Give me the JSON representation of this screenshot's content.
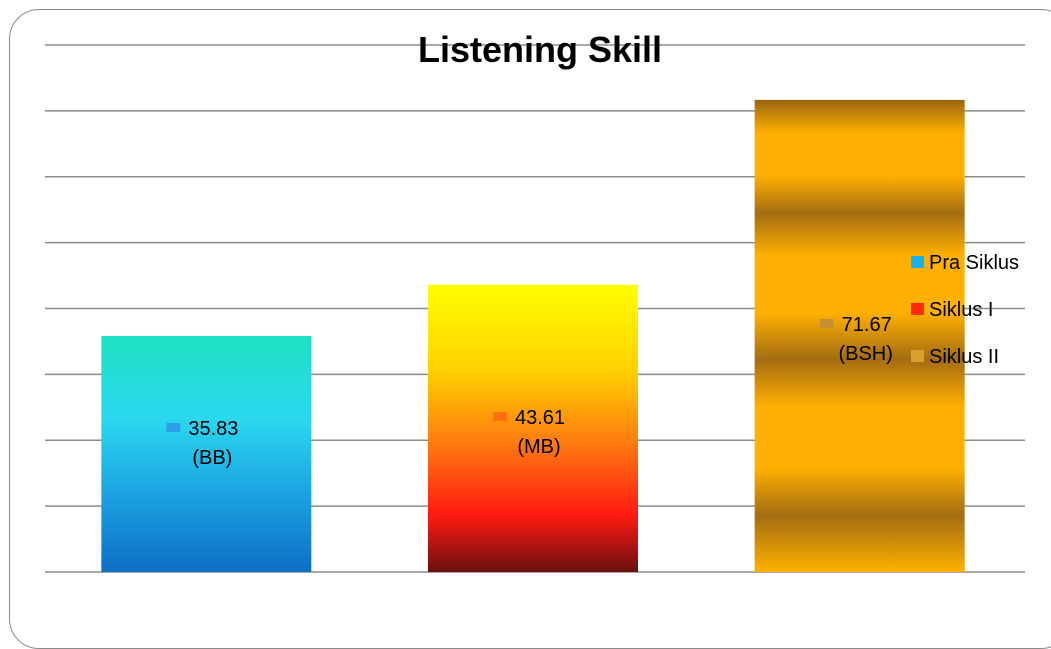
{
  "chart_data": {
    "type": "bar",
    "title": "Listening Skill",
    "categories": [
      "Pra Siklus",
      "Siklus I",
      "Siklus II"
    ],
    "values": [
      35.83,
      43.61,
      71.67
    ],
    "data_labels": [
      {
        "value": "35.83",
        "category": "(BB)"
      },
      {
        "value": "43.61",
        "category": "(MB)"
      },
      {
        "value": "71.67",
        "category": "(BSH)"
      }
    ],
    "ylim": [
      0,
      80
    ],
    "grid": true,
    "legend": {
      "placement": "right",
      "entries": [
        "Pra Siklus",
        "Siklus I",
        "Siklus II"
      ]
    },
    "colors": {
      "pra_siklus": [
        "#1ee0c2",
        "#2ad8ef",
        "#1a9ee0",
        "#0d6fc4"
      ],
      "siklus_1": [
        "#ffff00",
        "#ffd000",
        "#ff7b10",
        "#ff1a10",
        "#6b0f10"
      ],
      "siklus_2": [
        "#ffb000",
        "#a36d12"
      ],
      "gridline": "#8c8c8c"
    }
  }
}
